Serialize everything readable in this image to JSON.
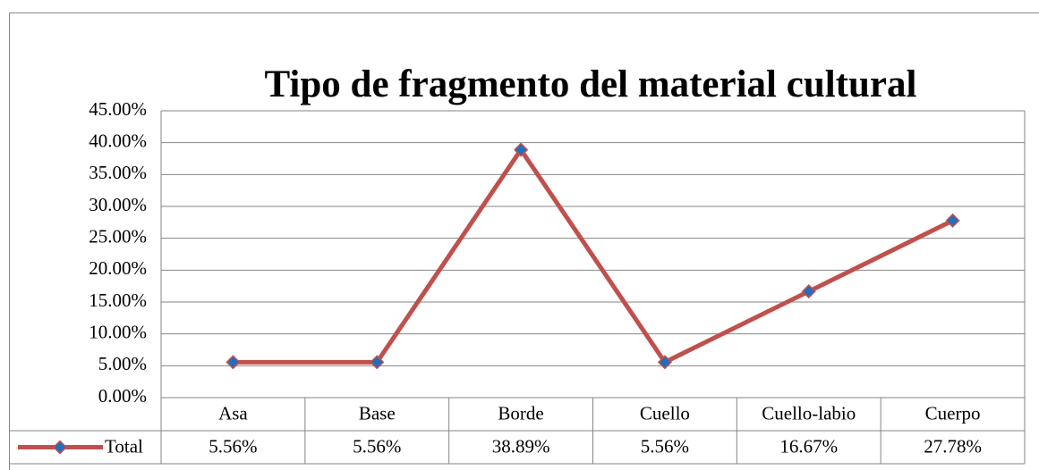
{
  "chart_data": {
    "type": "line",
    "title": "Tipo de fragmento del material cultural",
    "categories": [
      "Asa",
      "Base",
      "Borde",
      "Cuello",
      "Cuello-labio",
      "Cuerpo"
    ],
    "series": [
      {
        "name": "Total",
        "color": "#c0504d",
        "marker_color": "#1f6fbf",
        "values": [
          5.56,
          5.56,
          38.89,
          5.56,
          16.67,
          27.78
        ],
        "value_labels": [
          "5.56%",
          "5.56%",
          "38.89%",
          "5.56%",
          "16.67%",
          "27.78%"
        ]
      }
    ],
    "ylim": [
      0,
      45
    ],
    "yticks": [
      {
        "value": 0,
        "label": "0.00%"
      },
      {
        "value": 5,
        "label": "5.00%"
      },
      {
        "value": 10,
        "label": "10.00%"
      },
      {
        "value": 15,
        "label": "15.00%"
      },
      {
        "value": 20,
        "label": "20.00%"
      },
      {
        "value": 25,
        "label": "25.00%"
      },
      {
        "value": 30,
        "label": "30.00%"
      },
      {
        "value": 35,
        "label": "35.00%"
      },
      {
        "value": 40,
        "label": "40.00%"
      },
      {
        "value": 45,
        "label": "45.00%"
      }
    ],
    "grid": true
  }
}
